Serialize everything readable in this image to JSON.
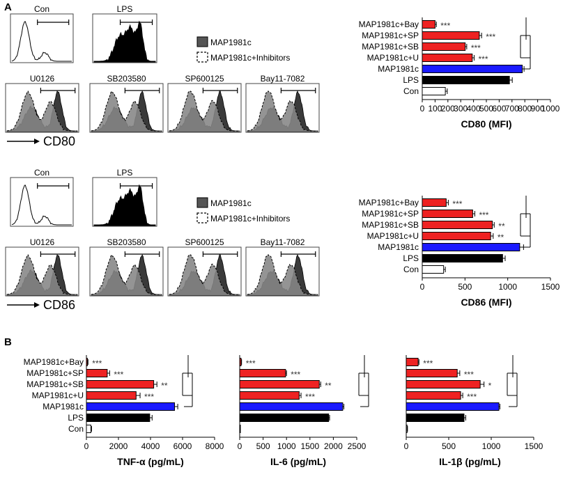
{
  "panels": {
    "a": "A",
    "b": "B"
  },
  "legend": {
    "single": "MAP1981c",
    "combo": "MAP1981c+Inhibitors"
  },
  "histograms": {
    "cd80": {
      "marker": "CD80",
      "top": [
        "Con",
        "LPS"
      ],
      "bottom": [
        "U0126",
        "SB203580",
        "SP600125",
        "Bay11-7082"
      ]
    },
    "cd86": {
      "marker": "CD86",
      "top": [
        "Con",
        "LPS"
      ],
      "bottom": [
        "U0126",
        "SB203580",
        "SP600125",
        "Bay11-7082"
      ]
    }
  },
  "colors": {
    "red": "#ee2222",
    "blue": "#1a1aff",
    "black": "#000000",
    "white": "#ffffff",
    "dark": "#3a3a3a",
    "grey": "#8a8a8a"
  },
  "chart_data": [
    {
      "id": "cd80",
      "type": "bar",
      "orientation": "horizontal",
      "xlabel": "CD80 (MFI)",
      "xlim": [
        0,
        1000
      ],
      "ticks": [
        "0",
        "100",
        "200",
        "300",
        "400",
        "500",
        "600",
        "700",
        "800",
        "900",
        "1000"
      ],
      "categories": [
        "MAP1981c+Bay",
        "MAP1981c+SP",
        "MAP1981c+SB",
        "MAP1981c+U",
        "MAP1981c",
        "LPS",
        "Con"
      ],
      "values": [
        100,
        445,
        335,
        390,
        780,
        680,
        180
      ],
      "errors": [
        10,
        18,
        12,
        15,
        14,
        22,
        15
      ],
      "fills": [
        "red",
        "red",
        "red",
        "red",
        "blue",
        "black",
        "white"
      ],
      "significance": [
        "***",
        "***",
        "***",
        "***",
        "",
        "",
        ""
      ]
    },
    {
      "id": "cd86",
      "type": "bar",
      "orientation": "horizontal",
      "xlabel": "CD86 (MFI)",
      "xlim": [
        0,
        1500
      ],
      "ticks": [
        "0",
        "500",
        "1000",
        "1500"
      ],
      "categories": [
        "MAP1981c+Bay",
        "MAP1981c+SP",
        "MAP1981c+SB",
        "MAP1981c+U",
        "MAP1981c",
        "LPS",
        "Con"
      ],
      "values": [
        280,
        590,
        820,
        800,
        1140,
        940,
        250
      ],
      "errors": [
        25,
        25,
        22,
        30,
        45,
        30,
        20
      ],
      "fills": [
        "red",
        "red",
        "red",
        "red",
        "blue",
        "black",
        "white"
      ],
      "significance": [
        "***",
        "***",
        "**",
        "**",
        "",
        "",
        ""
      ]
    },
    {
      "id": "tnf",
      "type": "bar",
      "orientation": "horizontal",
      "xlabel": "TNF-α (pg/mL)",
      "xlim": [
        0,
        8000
      ],
      "ticks": [
        "0",
        "2000",
        "4000",
        "6000",
        "8000"
      ],
      "categories": [
        "MAP1981c+Bay",
        "MAP1981c+SP",
        "MAP1981c+SB",
        "MAP1981c+U",
        "MAP1981c",
        "LPS",
        "Con"
      ],
      "values": [
        60,
        1300,
        4200,
        3100,
        5500,
        3950,
        280
      ],
      "errors": [
        40,
        150,
        200,
        250,
        200,
        150,
        40
      ],
      "fills": [
        "red",
        "red",
        "red",
        "red",
        "blue",
        "black",
        "white"
      ],
      "significance": [
        "***",
        "***",
        "**",
        "***",
        "",
        "",
        ""
      ]
    },
    {
      "id": "il6",
      "type": "bar",
      "orientation": "horizontal",
      "xlabel": "IL-6 (pg/mL)",
      "xlim": [
        0,
        2500
      ],
      "ticks": [
        "0",
        "500",
        "1000",
        "1500",
        "2000",
        "2500"
      ],
      "categories": [
        "MAP1981c+Bay",
        "MAP1981c+SP",
        "MAP1981c+SB",
        "MAP1981c+U",
        "MAP1981c",
        "LPS",
        "Con"
      ],
      "values": [
        30,
        980,
        1700,
        1270,
        2200,
        1900,
        10
      ],
      "errors": [
        10,
        20,
        30,
        40,
        25,
        20,
        5
      ],
      "fills": [
        "red",
        "red",
        "red",
        "red",
        "blue",
        "black",
        "white"
      ],
      "significance": [
        "***",
        "***",
        "**",
        "***",
        "",
        "",
        ""
      ]
    },
    {
      "id": "il1b",
      "type": "bar",
      "orientation": "horizontal",
      "xlabel": "IL-1β (pg/mL)",
      "xlim": [
        0,
        1500
      ],
      "ticks": [
        "0",
        "500",
        "1000",
        "1500"
      ],
      "categories": [
        "MAP1981c+Bay",
        "MAP1981c+SP",
        "MAP1981c+SB",
        "MAP1981c+U",
        "MAP1981c",
        "LPS",
        "Con"
      ],
      "values": [
        140,
        600,
        870,
        640,
        1090,
        680,
        10
      ],
      "errors": [
        10,
        30,
        45,
        25,
        12,
        20,
        5
      ],
      "fills": [
        "red",
        "red",
        "red",
        "red",
        "blue",
        "black",
        "white"
      ],
      "significance": [
        "***",
        "***",
        "*",
        "***",
        "",
        "",
        ""
      ]
    }
  ]
}
